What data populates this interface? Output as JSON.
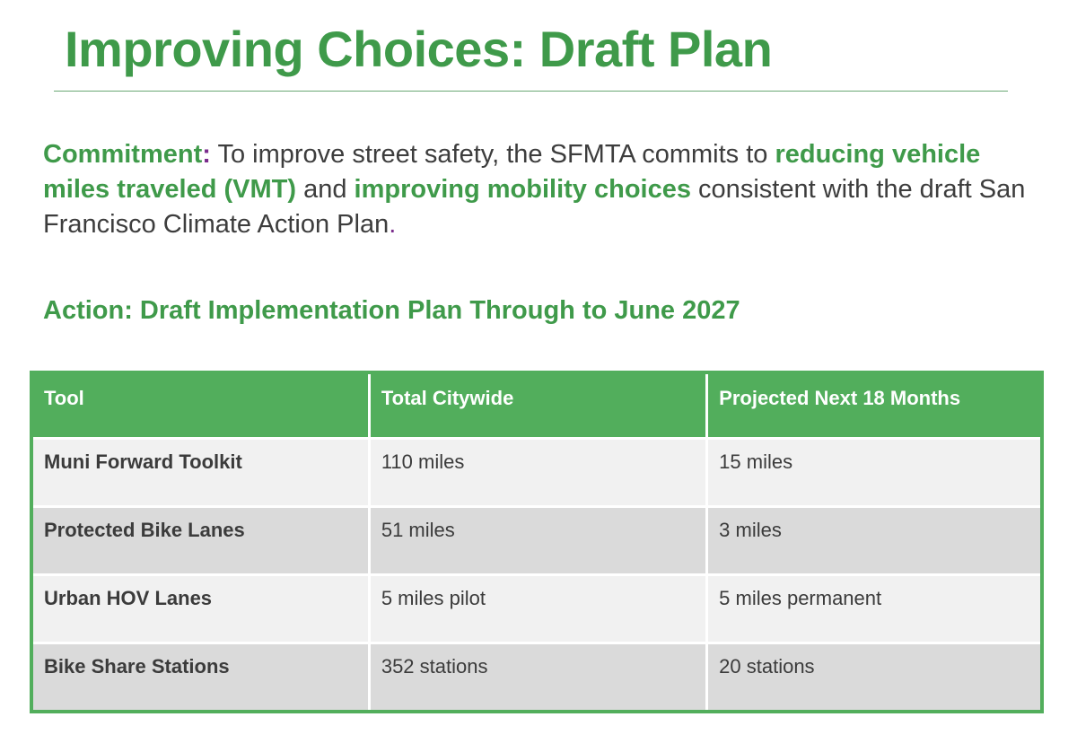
{
  "title": "Improving Choices: Draft Plan",
  "commitment": {
    "label": "Commitment",
    "colon": ":",
    "text1": " To improve street safety, the SFMTA commits to ",
    "highlight1": "reducing vehicle miles traveled (VMT)",
    "text2": " and ",
    "highlight2": "improving mobility choices",
    "text3": " consistent with the draft San Francisco Climate Action Plan",
    "end": "."
  },
  "action_heading": "Action: Draft Implementation Plan Through to June 2027",
  "table": {
    "headers": [
      "Tool",
      "Total Citywide",
      "Projected Next 18 Months"
    ],
    "rows": [
      [
        "Muni Forward Toolkit",
        "110 miles",
        "15 miles"
      ],
      [
        "Protected Bike Lanes",
        "51 miles",
        "3 miles"
      ],
      [
        "Urban HOV Lanes",
        "5 miles pilot",
        "5 miles permanent"
      ],
      [
        "Bike Share Stations",
        "352 stations",
        "20 stations"
      ]
    ]
  },
  "colors": {
    "brand_green": "#3f9a4a",
    "table_green": "#52ae5c",
    "accent_purple": "#7a2c8c"
  }
}
